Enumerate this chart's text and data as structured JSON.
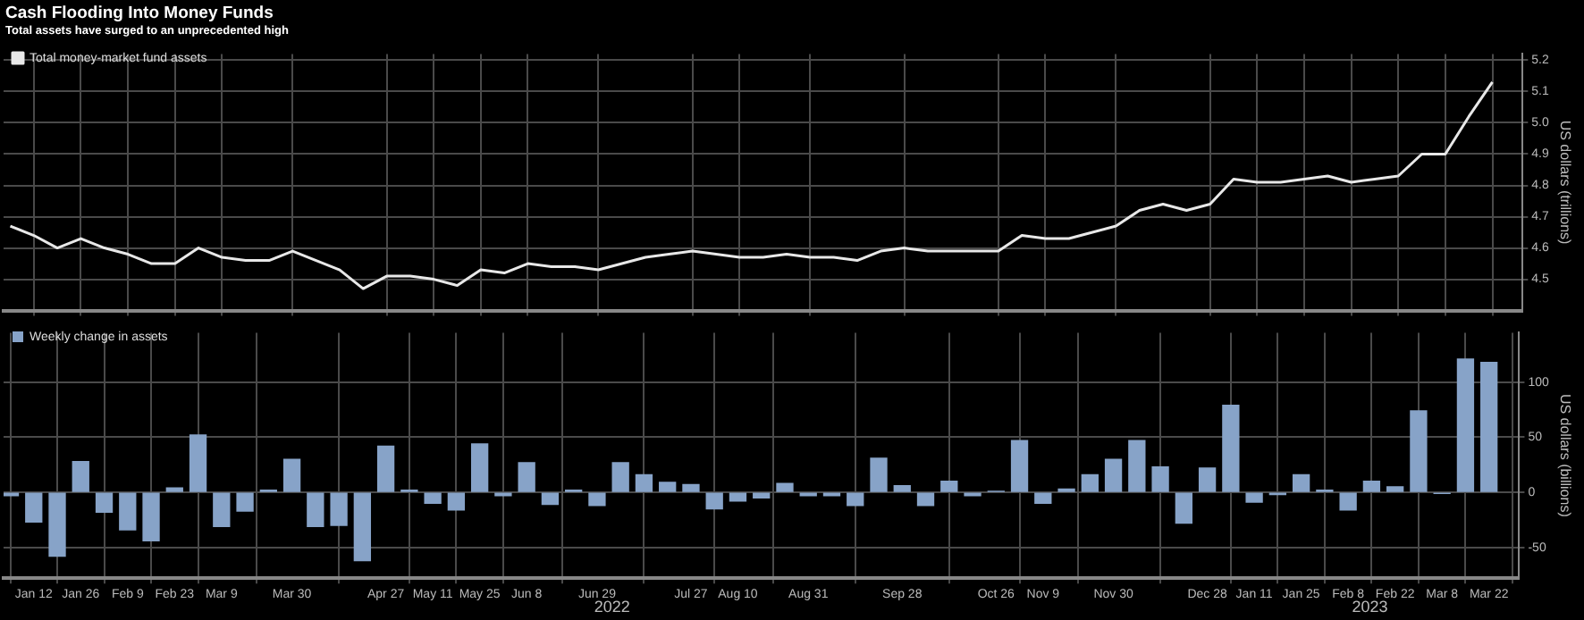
{
  "chart_data": [
    {
      "type": "line",
      "title": "Cash Flooding Into Money Funds",
      "subtitle": "Total assets have surged to an unprecedented high",
      "y2label": "US dollars (trillions)",
      "legend": "top left",
      "grid": true,
      "tick_labels": "y",
      "marker": "none",
      "xlim": [
        "2022-01-03",
        "2023-03-31"
      ],
      "xticks": [
        {
          "value": "2022-01-12",
          "label": null
        },
        {
          "value": "2022-01-26",
          "label": null
        },
        {
          "value": "2022-02-09",
          "label": null
        },
        {
          "value": "2022-02-23",
          "label": null
        },
        {
          "value": "2022-03-09",
          "label": null
        },
        {
          "value": "2022-03-30",
          "label": null
        },
        {
          "value": "2022-04-27",
          "label": null
        },
        {
          "value": "2022-05-11",
          "label": null
        },
        {
          "value": "2022-05-25",
          "label": null
        },
        {
          "value": "2022-06-08",
          "label": null
        },
        {
          "value": "2022-06-29",
          "label": null
        },
        {
          "value": "2022-07-27",
          "label": null
        },
        {
          "value": "2022-08-10",
          "label": null
        },
        {
          "value": "2022-08-31",
          "label": null
        },
        {
          "value": "2022-09-28",
          "label": null
        },
        {
          "value": "2022-10-26",
          "label": null
        },
        {
          "value": "2022-11-09",
          "label": null
        },
        {
          "value": "2022-11-30",
          "label": null
        },
        {
          "value": "2022-12-28",
          "label": null
        },
        {
          "value": "2023-01-11",
          "label": null
        },
        {
          "value": "2023-01-25",
          "label": null
        },
        {
          "value": "2023-02-08",
          "label": null
        },
        {
          "value": "2023-02-22",
          "label": null
        },
        {
          "value": "2023-03-08",
          "label": null
        },
        {
          "value": "2023-03-22",
          "label": null
        }
      ],
      "y2lim": [
        4.4,
        5.22
      ],
      "y2ticks": [
        4.5,
        4.6,
        4.7,
        4.8,
        4.9,
        {
          "value": 5,
          "label": "5.0"
        },
        5.1,
        5.2
      ],
      "series": [
        {
          "name": "Total money-market fund assets",
          "color": "#e8e8e8",
          "axis": "y2",
          "x": [
            "2022-01-05",
            "2022-01-12",
            "2022-01-19",
            "2022-01-26",
            "2022-02-02",
            "2022-02-09",
            "2022-02-16",
            "2022-02-23",
            "2022-03-02",
            "2022-03-09",
            "2022-03-16",
            "2022-03-23",
            "2022-03-30",
            "2022-04-06",
            "2022-04-13",
            "2022-04-20",
            "2022-04-27",
            "2022-05-04",
            "2022-05-11",
            "2022-05-18",
            "2022-05-25",
            "2022-06-01",
            "2022-06-08",
            "2022-06-15",
            "2022-06-22",
            "2022-06-29",
            "2022-07-06",
            "2022-07-13",
            "2022-07-20",
            "2022-07-27",
            "2022-08-03",
            "2022-08-10",
            "2022-08-17",
            "2022-08-24",
            "2022-08-31",
            "2022-09-07",
            "2022-09-14",
            "2022-09-21",
            "2022-09-28",
            "2022-10-05",
            "2022-10-12",
            "2022-10-19",
            "2022-10-26",
            "2022-11-02",
            "2022-11-09",
            "2022-11-16",
            "2022-11-23",
            "2022-11-30",
            "2022-12-07",
            "2022-12-14",
            "2022-12-21",
            "2022-12-28",
            "2023-01-04",
            "2023-01-11",
            "2023-01-18",
            "2023-01-25",
            "2023-02-01",
            "2023-02-08",
            "2023-02-15",
            "2023-02-22",
            "2023-03-01",
            "2023-03-08",
            "2023-03-15",
            "2023-03-22"
          ],
          "values": [
            4.67,
            4.64,
            4.6,
            4.63,
            4.6,
            4.58,
            4.55,
            4.55,
            4.6,
            4.57,
            4.56,
            4.56,
            4.59,
            4.56,
            4.53,
            4.47,
            4.51,
            4.51,
            4.5,
            4.48,
            4.53,
            4.52,
            4.55,
            4.54,
            4.54,
            4.53,
            4.55,
            4.57,
            4.58,
            4.59,
            4.58,
            4.57,
            4.57,
            4.58,
            4.57,
            4.57,
            4.56,
            4.59,
            4.6,
            4.59,
            4.59,
            4.59,
            4.59,
            4.64,
            4.63,
            4.63,
            4.65,
            4.67,
            4.72,
            4.74,
            4.72,
            4.74,
            4.82,
            4.81,
            4.81,
            4.82,
            4.83,
            4.81,
            4.82,
            4.83,
            4.9,
            4.9,
            5.02,
            5.13
          ]
        }
      ]
    },
    {
      "type": "bar",
      "y2label": "US dollars (billions)",
      "legend": "top left",
      "grid": true,
      "xlim": [
        "2022-01-03",
        "2023-03-31"
      ],
      "xticks": [
        {
          "value": "2022-01-12",
          "label": "Jan 12"
        },
        {
          "value": "2022-01-26",
          "label": "Jan 26"
        },
        {
          "value": "2022-02-09",
          "label": "Feb 9"
        },
        {
          "value": "2022-02-23",
          "label": "Feb 23"
        },
        {
          "value": "2022-03-09",
          "label": "Mar 9"
        },
        {
          "value": "2022-03-30",
          "label": "Mar 30"
        },
        {
          "value": "2022-04-27",
          "label": "Apr 27"
        },
        {
          "value": "2022-05-11",
          "label": "May 11"
        },
        {
          "value": "2022-05-25",
          "label": "May 25"
        },
        {
          "value": "2022-06-08",
          "label": "Jun 8"
        },
        {
          "value": "2022-06-29",
          "label": "Jun 29"
        },
        {
          "value": "2022-07-27",
          "label": "Jul 27"
        },
        {
          "value": "2022-08-10",
          "label": "Aug 10"
        },
        {
          "value": "2022-08-31",
          "label": "Aug 31"
        },
        {
          "value": "2022-09-28",
          "label": "Sep 28"
        },
        {
          "value": "2022-10-26",
          "label": "Oct 26"
        },
        {
          "value": "2022-11-09",
          "label": "Nov 9"
        },
        {
          "value": "2022-11-30",
          "label": "Nov 30"
        },
        {
          "value": "2022-12-28",
          "label": "Dec 28"
        },
        {
          "value": "2023-01-11",
          "label": "Jan 11"
        },
        {
          "value": "2023-01-25",
          "label": "Jan 25"
        },
        {
          "value": "2023-02-08",
          "label": "Feb 8"
        },
        {
          "value": "2023-02-22",
          "label": "Feb 22"
        },
        {
          "value": "2023-03-08",
          "label": "Mar 8"
        },
        {
          "value": "2023-03-22",
          "label": "Mar 22"
        }
      ],
      "y2lim": [
        -78,
        145
      ],
      "y2ticks": [
        -50,
        0,
        50,
        100
      ],
      "annotations": [
        "2022",
        "2023"
      ],
      "series": [
        {
          "name": "Weekly change in assets",
          "color": "#87a3c8",
          "axis": "y2",
          "x": [
            "2022-01-05",
            "2022-01-12",
            "2022-01-19",
            "2022-01-26",
            "2022-02-02",
            "2022-02-09",
            "2022-02-16",
            "2022-02-23",
            "2022-03-02",
            "2022-03-09",
            "2022-03-16",
            "2022-03-23",
            "2022-03-30",
            "2022-04-06",
            "2022-04-13",
            "2022-04-20",
            "2022-04-27",
            "2022-05-04",
            "2022-05-11",
            "2022-05-18",
            "2022-05-25",
            "2022-06-01",
            "2022-06-08",
            "2022-06-15",
            "2022-06-22",
            "2022-06-29",
            "2022-07-06",
            "2022-07-13",
            "2022-07-20",
            "2022-07-27",
            "2022-08-03",
            "2022-08-10",
            "2022-08-17",
            "2022-08-24",
            "2022-08-31",
            "2022-09-07",
            "2022-09-14",
            "2022-09-21",
            "2022-09-28",
            "2022-10-05",
            "2022-10-12",
            "2022-10-19",
            "2022-10-26",
            "2022-11-02",
            "2022-11-09",
            "2022-11-16",
            "2022-11-23",
            "2022-11-30",
            "2022-12-07",
            "2022-12-14",
            "2022-12-21",
            "2022-12-28",
            "2023-01-04",
            "2023-01-11",
            "2023-01-18",
            "2023-01-25",
            "2023-02-01",
            "2023-02-08",
            "2023-02-15",
            "2023-02-22",
            "2023-03-01",
            "2023-03-08",
            "2023-03-15",
            "2023-03-22"
          ],
          "values": [
            -3,
            -27,
            -58,
            28,
            -18,
            -34,
            -44,
            4,
            52,
            -31,
            -17,
            2,
            30,
            -31,
            -30,
            -62,
            42,
            2,
            -10,
            -16,
            44,
            -3,
            27,
            -11,
            2,
            -12,
            27,
            16,
            9,
            7,
            -15,
            -8,
            -5,
            8,
            -3,
            -3,
            -12,
            31,
            6,
            -12,
            10,
            -3,
            1,
            47,
            -10,
            3,
            16,
            30,
            47,
            23,
            -28,
            22,
            79,
            -9,
            -2,
            16,
            2,
            -16,
            10,
            5,
            74,
            -1,
            121,
            118
          ]
        }
      ]
    }
  ]
}
